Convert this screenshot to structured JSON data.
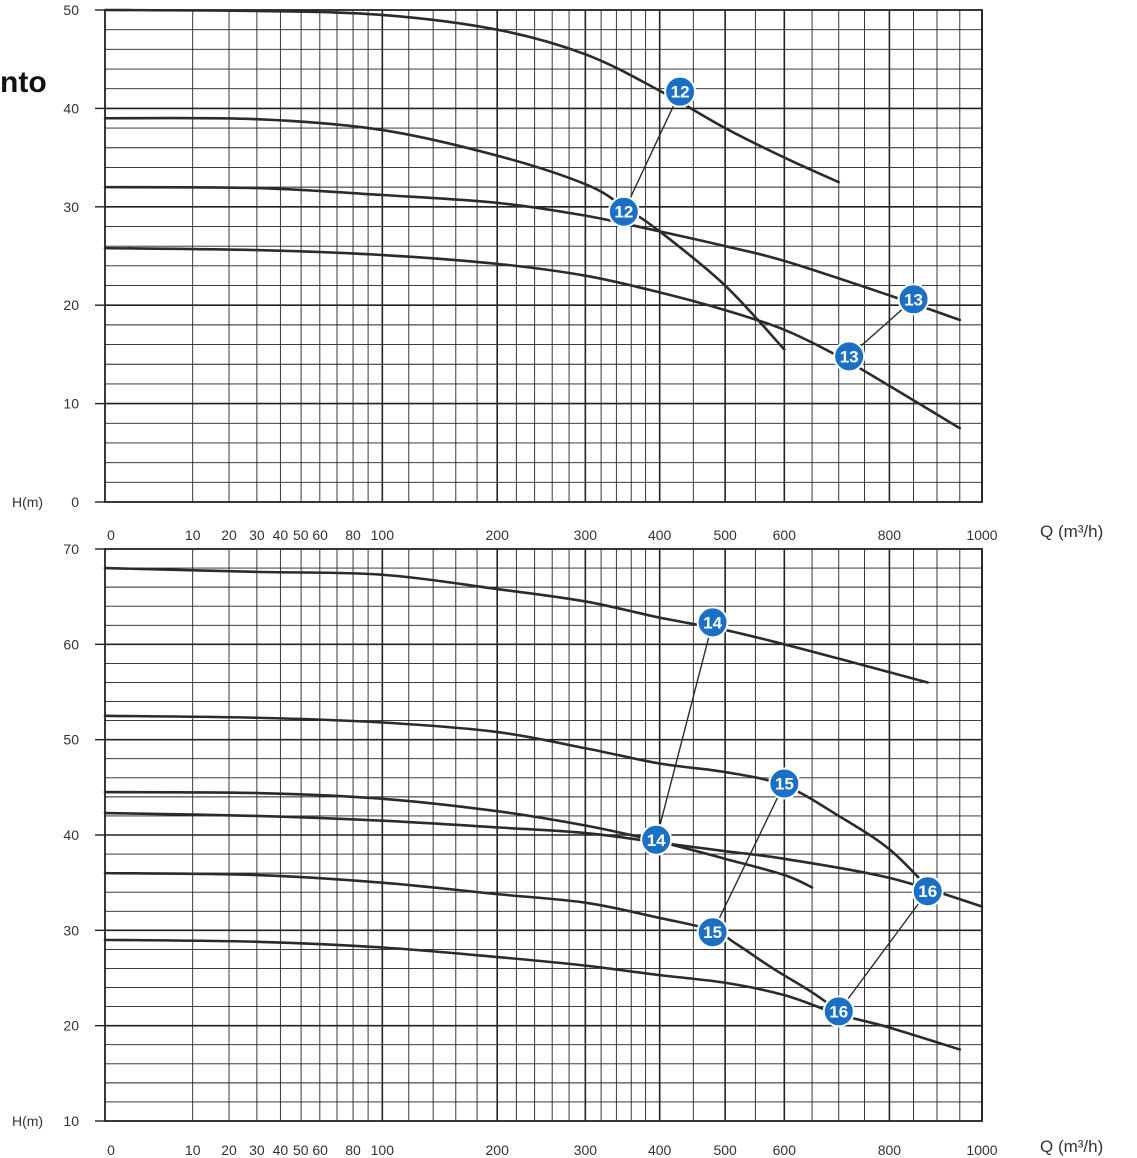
{
  "header": {
    "title_fragment": "nto"
  },
  "chart_data": [
    {
      "type": "line",
      "title": "",
      "xlabel": "Q (m³/h)",
      "ylabel": "H(m)",
      "x_scale": "sqrt",
      "xlim": [
        0,
        1000
      ],
      "ylim": [
        0,
        50
      ],
      "x_ticks": [
        0,
        10,
        20,
        30,
        40,
        50,
        60,
        80,
        100,
        200,
        300,
        400,
        500,
        600,
        800,
        1000
      ],
      "x_tick_labels": [
        "0",
        "10",
        "20",
        "30",
        "40",
        "50 60",
        "",
        "80",
        "100",
        "200",
        "300",
        "400",
        "500",
        "600",
        "800",
        "1000"
      ],
      "y_ticks": [
        0,
        10,
        20,
        30,
        40,
        50
      ],
      "y_tick_labels": [
        "0",
        "10",
        "20",
        "30",
        "40",
        "50"
      ],
      "grid": true,
      "series": [
        {
          "x": [
            0,
            30,
            100,
            200,
            300,
            400,
            500,
            600,
            700
          ],
          "y": [
            50,
            49.9,
            49.5,
            48,
            45.5,
            41.8,
            38,
            35,
            32.5
          ]
        },
        {
          "x": [
            0,
            30,
            100,
            200,
            300,
            350,
            400,
            500,
            600
          ],
          "y": [
            39,
            38.9,
            37.8,
            35.2,
            32.3,
            30,
            27.5,
            22,
            15.5
          ]
        },
        {
          "x": [
            0,
            30,
            100,
            200,
            300,
            400,
            500,
            600,
            800,
            950
          ],
          "y": [
            32,
            31.9,
            31.2,
            30.4,
            29.1,
            27.5,
            26,
            24.5,
            21,
            18.5
          ]
        },
        {
          "x": [
            0,
            30,
            100,
            200,
            300,
            400,
            500,
            600,
            700,
            800,
            950
          ],
          "y": [
            25.8,
            25.6,
            25.1,
            24.2,
            23,
            21.3,
            19.5,
            17.5,
            14.8,
            11.8,
            7.5
          ]
        }
      ],
      "markers": [
        {
          "label": "12",
          "x": 430,
          "y": 41.7
        },
        {
          "label": "12",
          "x": 350,
          "y": 29.5
        },
        {
          "label": "13",
          "x": 850,
          "y": 20.6
        },
        {
          "label": "13",
          "x": 720,
          "y": 14.8
        }
      ]
    },
    {
      "type": "line",
      "title": "",
      "xlabel": "Q (m³/h)",
      "ylabel": "H(m)",
      "x_scale": "sqrt",
      "xlim": [
        0,
        1000
      ],
      "ylim": [
        10,
        70
      ],
      "x_ticks": [
        0,
        10,
        20,
        30,
        40,
        50,
        60,
        80,
        100,
        200,
        300,
        400,
        500,
        600,
        800,
        1000
      ],
      "x_tick_labels": [
        "0",
        "10",
        "20",
        "30",
        "40",
        "50 60",
        "",
        "80",
        "100",
        "200",
        "300",
        "400",
        "500",
        "600",
        "800",
        "1000"
      ],
      "y_ticks": [
        10,
        20,
        30,
        40,
        50,
        60,
        70
      ],
      "y_tick_labels": [
        "10",
        "20",
        "30",
        "40",
        "50",
        "60",
        "70"
      ],
      "grid": true,
      "series": [
        {
          "x": [
            0,
            30,
            100,
            200,
            300,
            400,
            500,
            600,
            700,
            880
          ],
          "y": [
            68,
            67.6,
            67.3,
            65.8,
            64.5,
            62.8,
            61.5,
            60,
            58.5,
            56
          ]
        },
        {
          "x": [
            0,
            30,
            100,
            200,
            300,
            400,
            500,
            600,
            700,
            800,
            890
          ],
          "y": [
            52.5,
            52.3,
            51.8,
            50.8,
            49.1,
            47.5,
            46.6,
            45.2,
            42,
            38.5,
            34
          ]
        },
        {
          "x": [
            0,
            30,
            100,
            200,
            300,
            400,
            500,
            600,
            650
          ],
          "y": [
            44.5,
            44.4,
            43.8,
            42.5,
            41,
            39.3,
            37.5,
            35.8,
            34.5
          ]
        },
        {
          "x": [
            0,
            30,
            100,
            200,
            300,
            400,
            500,
            600,
            800,
            1000
          ],
          "y": [
            42.3,
            42,
            41.5,
            40.8,
            40.2,
            39.2,
            38.3,
            37.5,
            35.5,
            32.5
          ]
        },
        {
          "x": [
            0,
            30,
            100,
            200,
            300,
            400,
            480,
            520,
            580,
            650,
            700
          ],
          "y": [
            36,
            35.8,
            35,
            33.8,
            32.9,
            31.3,
            30,
            28.5,
            26,
            23.5,
            21.5
          ]
        },
        {
          "x": [
            0,
            30,
            100,
            200,
            300,
            400,
            500,
            600,
            700,
            800,
            950
          ],
          "y": [
            29,
            28.8,
            28.2,
            27.2,
            26.3,
            25.3,
            24.5,
            23.2,
            21.2,
            19.8,
            17.5
          ]
        }
      ],
      "markers": [
        {
          "label": "14",
          "x": 480,
          "y": 62.3
        },
        {
          "label": "14",
          "x": 395,
          "y": 39.5
        },
        {
          "label": "15",
          "x": 600,
          "y": 45.4
        },
        {
          "label": "15",
          "x": 480,
          "y": 29.8
        },
        {
          "label": "16",
          "x": 880,
          "y": 34.1
        },
        {
          "label": "16",
          "x": 700,
          "y": 21.5
        }
      ]
    }
  ],
  "colors": {
    "curve": "#2b2b2b",
    "grid": "#222222",
    "marker_fill": "#1b6fc5",
    "marker_text": "#ffffff"
  }
}
